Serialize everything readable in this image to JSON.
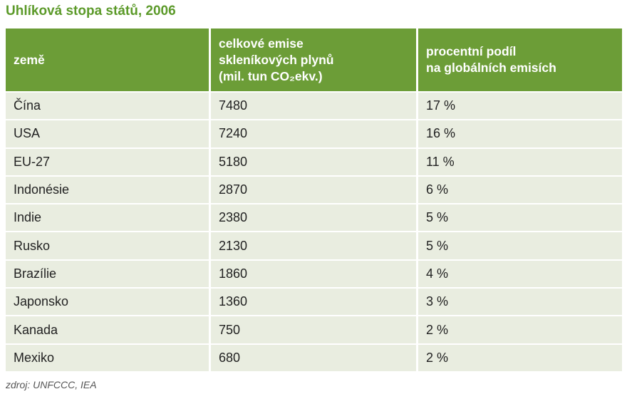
{
  "title": "Uhlíková stopa států, 2006",
  "table": {
    "header": [
      [
        "země"
      ],
      [
        "celkové emise",
        "skleníkových plynů",
        "(mil. tun CO₂ekv.)"
      ],
      [
        "procentní podíl",
        "na globálních emisích"
      ]
    ],
    "rows": [
      [
        "Čína",
        "7480",
        "17 %"
      ],
      [
        "USA",
        "7240",
        "16 %"
      ],
      [
        "EU-27",
        "5180",
        "11 %"
      ],
      [
        "Indonésie",
        "2870",
        "6 %"
      ],
      [
        "Indie",
        "2380",
        "5 %"
      ],
      [
        "Rusko",
        "2130",
        "5 %"
      ],
      [
        "Brazílie",
        "1860",
        "4 %"
      ],
      [
        "Japonsko",
        "1360",
        "3 %"
      ],
      [
        "Kanada",
        "750",
        "2 %"
      ],
      [
        "Mexiko",
        "680",
        "2 %"
      ]
    ]
  },
  "source": "zdroj: UNFCCC, IEA"
}
